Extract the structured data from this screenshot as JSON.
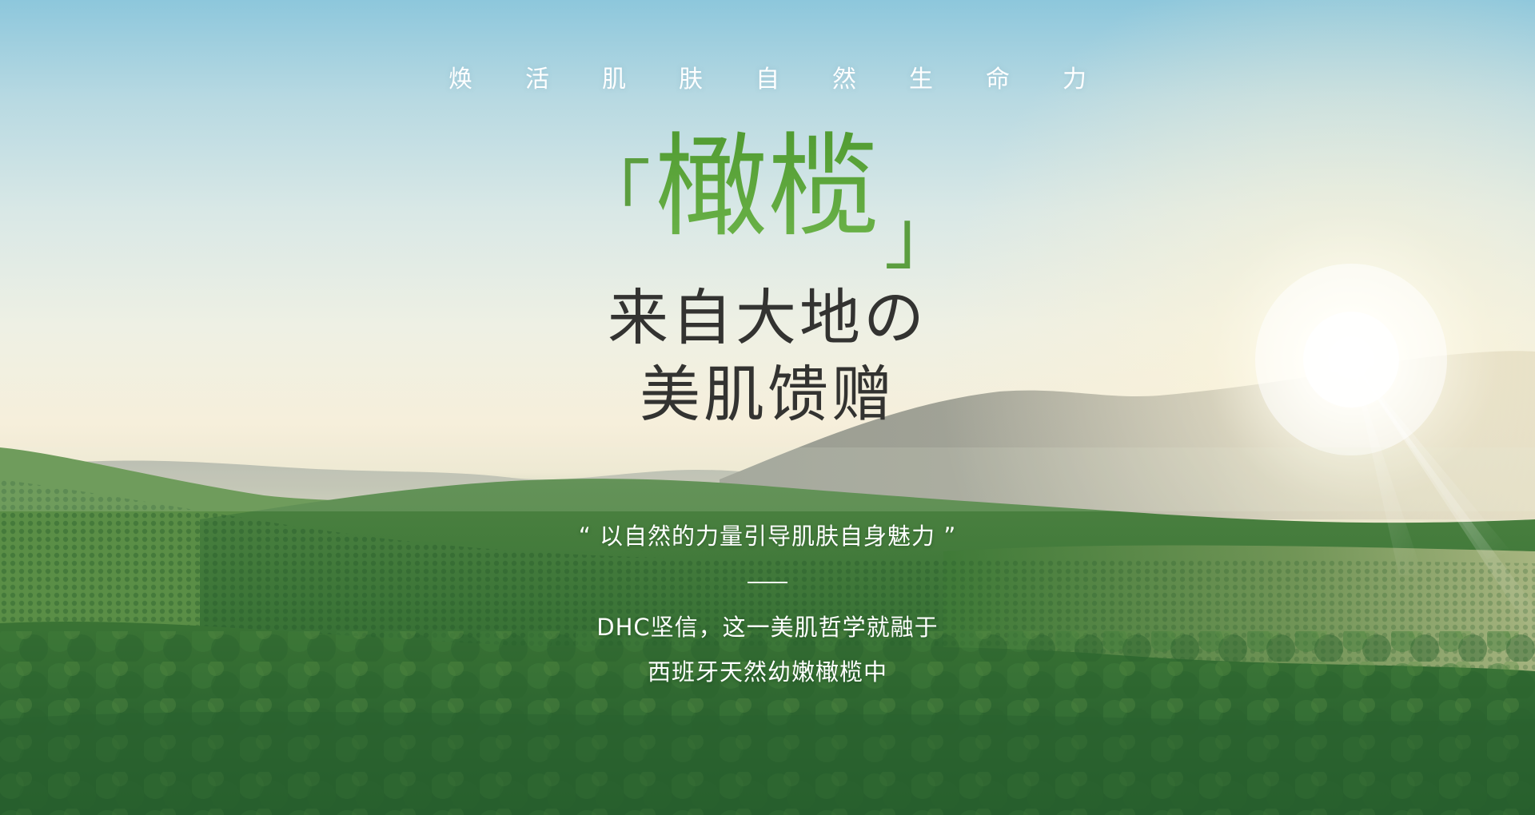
{
  "banner": {
    "tagline": "焕活肌肤自然生命力",
    "bracket_open": "「",
    "product_name": "橄榄",
    "bracket_close": "」",
    "headline_line1": "来自大地の",
    "headline_line2": "美肌馈赠",
    "quote": "“ 以自然的力量引导肌肤自身魅力 ”",
    "description_line1": "DHC坚信，这一美肌哲学就融于",
    "description_line2": "西班牙天然幼嫩橄榄中"
  },
  "colors": {
    "brand_green": "#5aa23b",
    "headline_text": "#333331",
    "light_text": "#ffffff",
    "sky_top": "#8dc7dc",
    "field_green": "#2f6b2f"
  }
}
